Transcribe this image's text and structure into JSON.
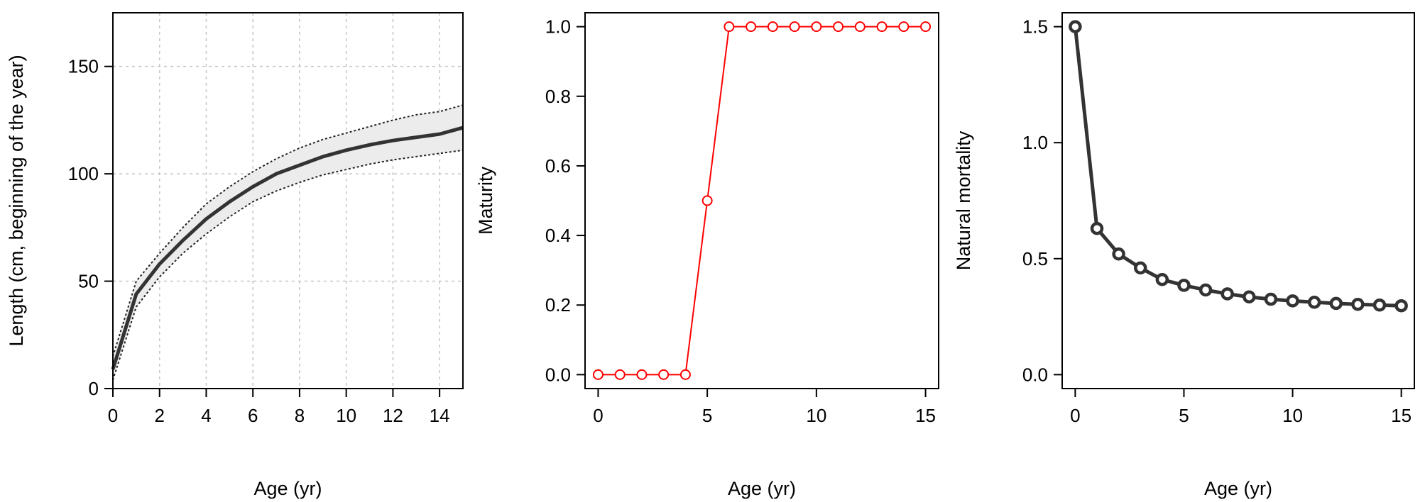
{
  "chart_data": [
    {
      "type": "line",
      "title": "",
      "xlabel": "Age (yr)",
      "ylabel": "Length (cm, beginning of the year)",
      "xlim": [
        0,
        15
      ],
      "ylim": [
        0,
        175
      ],
      "xticks": [
        0,
        2,
        4,
        6,
        8,
        10,
        12,
        14
      ],
      "yticks": [
        0,
        50,
        100,
        150
      ],
      "grid": true,
      "x": [
        0,
        1,
        2,
        3,
        4,
        5,
        6,
        7,
        8,
        9,
        10,
        11,
        12,
        13,
        14,
        15
      ],
      "series": [
        {
          "name": "mean",
          "style": "solid",
          "values": [
            9,
            44,
            58,
            69,
            79,
            87,
            94,
            100,
            104,
            108,
            111,
            113.5,
            115.5,
            117,
            118.5,
            121.5
          ]
        },
        {
          "name": "upper",
          "style": "dotted",
          "values": [
            15,
            50,
            63,
            75,
            86,
            94,
            101,
            107,
            112,
            116,
            119,
            122,
            125,
            127.5,
            129,
            132
          ]
        },
        {
          "name": "lower",
          "style": "dotted",
          "values": [
            4,
            38,
            52,
            63,
            72,
            80,
            87,
            92,
            96,
            99.5,
            102,
            104.5,
            106.5,
            108,
            109.5,
            111
          ]
        }
      ],
      "colors": {
        "line": "#333333",
        "band": "#ececec"
      }
    },
    {
      "type": "line",
      "title": "",
      "xlabel": "Age (yr)",
      "ylabel": "Maturity",
      "xlim": [
        0,
        15
      ],
      "ylim": [
        0,
        1
      ],
      "xticks": [
        0,
        5,
        10,
        15
      ],
      "yticks": [
        0.0,
        0.2,
        0.4,
        0.6,
        0.8,
        1.0
      ],
      "ytick_labels": [
        "0.0",
        "0.2",
        "0.4",
        "0.6",
        "0.8",
        "1.0"
      ],
      "grid": false,
      "x": [
        0,
        1,
        2,
        3,
        4,
        5,
        6,
        7,
        8,
        9,
        10,
        11,
        12,
        13,
        14,
        15
      ],
      "series": [
        {
          "name": "maturity",
          "values": [
            0,
            0,
            0,
            0,
            0,
            0.5,
            1,
            1,
            1,
            1,
            1,
            1,
            1,
            1,
            1,
            1
          ]
        }
      ],
      "colors": {
        "line": "#ff0000"
      }
    },
    {
      "type": "line",
      "title": "",
      "xlabel": "Age (yr)",
      "ylabel": "Natural mortality",
      "xlim": [
        0,
        15
      ],
      "ylim": [
        0,
        1.5
      ],
      "xticks": [
        0,
        5,
        10,
        15
      ],
      "yticks": [
        0.0,
        0.5,
        1.0,
        1.5
      ],
      "ytick_labels": [
        "0.0",
        "0.5",
        "1.0",
        "1.5"
      ],
      "grid": false,
      "x": [
        0,
        1,
        2,
        3,
        4,
        5,
        6,
        7,
        8,
        9,
        10,
        11,
        12,
        13,
        14,
        15
      ],
      "series": [
        {
          "name": "natural mortality",
          "values": [
            1.5,
            0.63,
            0.52,
            0.46,
            0.41,
            0.385,
            0.365,
            0.348,
            0.335,
            0.325,
            0.318,
            0.312,
            0.307,
            0.303,
            0.3,
            0.297
          ]
        }
      ],
      "colors": {
        "line": "#333333"
      }
    }
  ]
}
